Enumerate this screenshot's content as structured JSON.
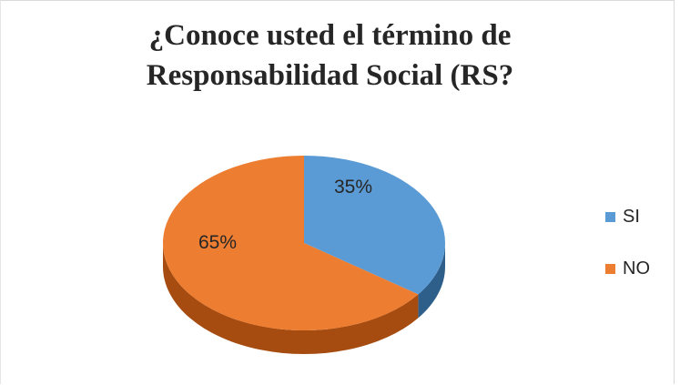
{
  "chart_data": {
    "type": "pie",
    "title_line1": "¿Conoce usted el término de",
    "title_line2": "Responsabilidad Social (RS?",
    "categories": [
      "SI",
      "NO"
    ],
    "values": [
      35,
      65
    ],
    "data_labels": [
      "35%",
      "65%"
    ],
    "colors": [
      "#5b9bd5",
      "#ed7d31"
    ],
    "side_colors": [
      "#2e5f8a",
      "#a64c10"
    ],
    "legend_position": "right",
    "style": "3d"
  }
}
